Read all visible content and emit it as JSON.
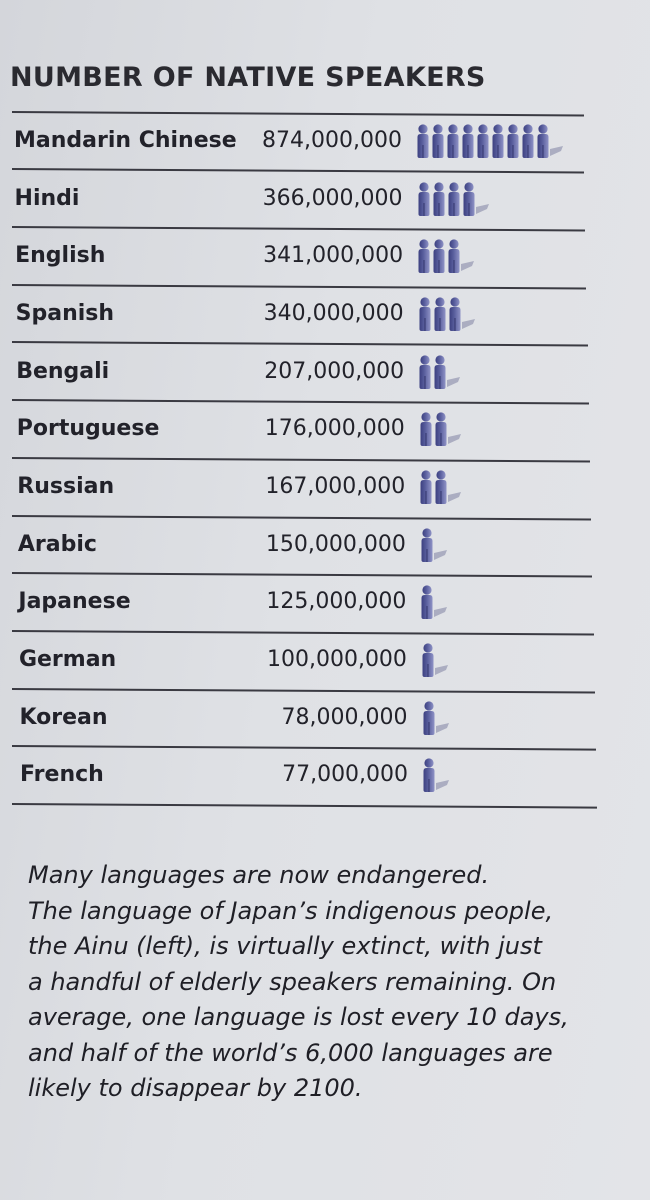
{
  "chart_data": {
    "type": "table",
    "title": "NUMBER OF NATIVE SPEAKERS",
    "icon": "person-icon",
    "icon_color": "#5a5f9e",
    "rows": [
      {
        "language": "Mandarin Chinese",
        "speakers": "874,000,000",
        "value": 874000000,
        "icons": 9
      },
      {
        "language": "Hindi",
        "speakers": "366,000,000",
        "value": 366000000,
        "icons": 4
      },
      {
        "language": "English",
        "speakers": "341,000,000",
        "value": 341000000,
        "icons": 3
      },
      {
        "language": "Spanish",
        "speakers": "340,000,000",
        "value": 340000000,
        "icons": 3
      },
      {
        "language": "Bengali",
        "speakers": "207,000,000",
        "value": 207000000,
        "icons": 2
      },
      {
        "language": "Portuguese",
        "speakers": "176,000,000",
        "value": 176000000,
        "icons": 2
      },
      {
        "language": "Russian",
        "speakers": "167,000,000",
        "value": 167000000,
        "icons": 2
      },
      {
        "language": "Arabic",
        "speakers": "150,000,000",
        "value": 150000000,
        "icons": 1
      },
      {
        "language": "Japanese",
        "speakers": "125,000,000",
        "value": 125000000,
        "icons": 1
      },
      {
        "language": "German",
        "speakers": "100,000,000",
        "value": 100000000,
        "icons": 1
      },
      {
        "language": "Korean",
        "speakers": "78,000,000",
        "value": 78000000,
        "icons": 1
      },
      {
        "language": "French",
        "speakers": "77,000,000",
        "value": 77000000,
        "icons": 1
      }
    ]
  },
  "caption": {
    "lines": [
      "Many languages are now endangered.",
      "The language of Japan’s indigenous people,",
      "the Ainu (left), is virtually extinct, with just",
      "a handful of elderly speakers remaining. On",
      "average, one language is lost every 10 days,",
      "and half of the world’s 6,000 languages are",
      "likely to disappear by 2100."
    ]
  }
}
